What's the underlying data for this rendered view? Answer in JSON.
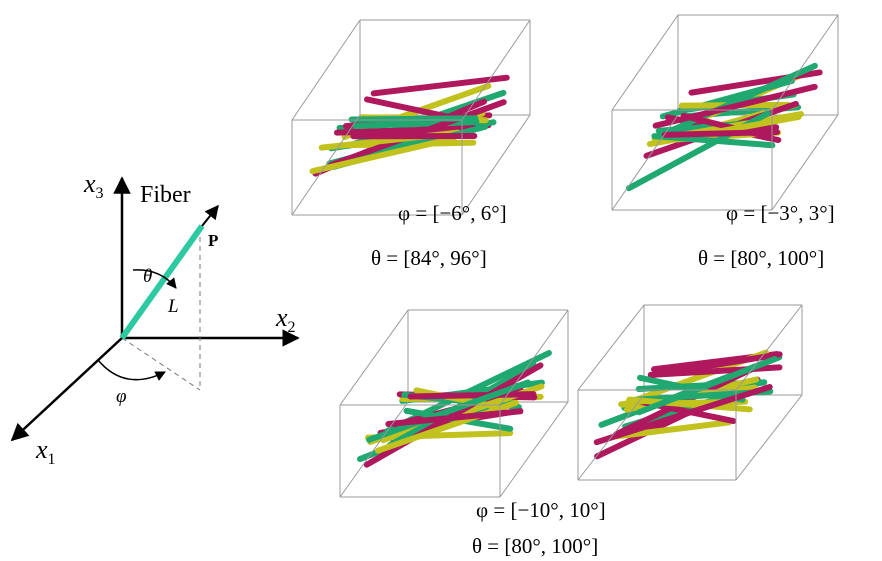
{
  "axes_diagram": {
    "axes": [
      {
        "symbol": "x",
        "subscript": "3"
      },
      {
        "symbol": "x",
        "subscript": "2"
      },
      {
        "symbol": "x",
        "subscript": "1"
      }
    ],
    "fiber_label": "Fiber",
    "point_label": "P",
    "polar_angle": "θ",
    "length": "L",
    "azimuth": "φ"
  },
  "panels": [
    {
      "phi": "φ = [−6°, 6°]",
      "theta": "θ = [84°, 96°]"
    },
    {
      "phi": "φ = [−3°, 3°]",
      "theta": "θ = [80°, 100°]"
    },
    {
      "phi": "φ = [−10°, 10°]",
      "theta": "θ = [80°, 100°]"
    }
  ]
}
